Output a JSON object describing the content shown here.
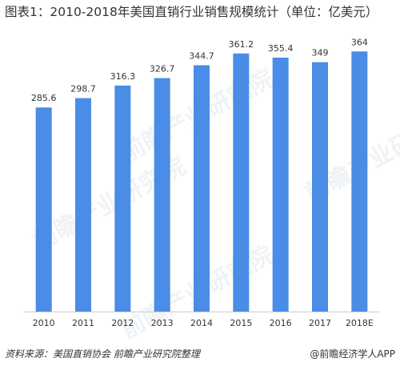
{
  "title": "图表1：2010-2018年美国直销行业销售规模统计（单位：亿美元）",
  "watermark_text": "前瞻产业研究院",
  "source_text": "资料来源：美国直销协会  前瞻产业研究院整理",
  "credit_text": "@前瞻经济学人APP",
  "colors": {
    "bar": "#4a8ce6",
    "axis": "#cccccc",
    "text": "#333333"
  },
  "chart_data": {
    "type": "bar",
    "categories": [
      "2010",
      "2011",
      "2012",
      "2013",
      "2014",
      "2015",
      "2016",
      "2017",
      "2018E"
    ],
    "values": [
      285.6,
      298.7,
      316.3,
      326.7,
      344.7,
      361.2,
      355.4,
      349,
      364
    ],
    "value_labels": [
      "285.6",
      "298.7",
      "316.3",
      "326.7",
      "344.7",
      "361.2",
      "355.4",
      "349",
      "364"
    ],
    "title": "图表1：2010-2018年美国直销行业销售规模统计（单位：亿美元）",
    "xlabel": "",
    "ylabel": "",
    "ylim": [
      0,
      380
    ],
    "grid": false,
    "legend": "none"
  }
}
